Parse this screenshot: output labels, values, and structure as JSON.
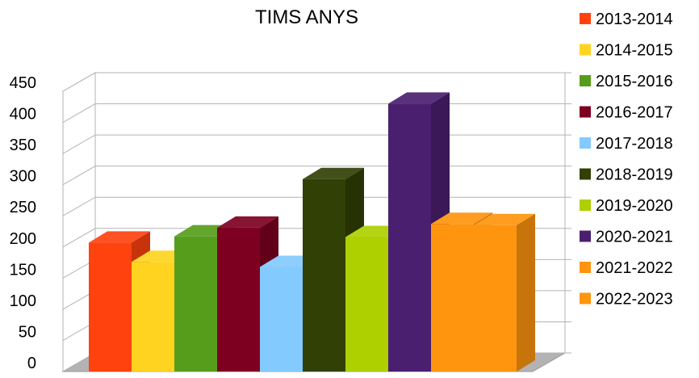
{
  "chart_data": {
    "type": "bar",
    "title": "TIMS ANYS",
    "xlabel": "",
    "ylabel": "",
    "ylim": [
      0,
      450
    ],
    "yticks": [
      0,
      50,
      100,
      150,
      200,
      250,
      300,
      350,
      400,
      450
    ],
    "grid": true,
    "three_d": true,
    "legend_position": "right",
    "series": [
      {
        "name": "2013-2014",
        "value": 207,
        "color": "#ff420e"
      },
      {
        "name": "2014-2015",
        "value": 176,
        "color": "#ffd320"
      },
      {
        "name": "2015-2016",
        "value": 217,
        "color": "#579d1c"
      },
      {
        "name": "2016-2017",
        "value": 231,
        "color": "#7e0021"
      },
      {
        "name": "2017-2018",
        "value": 168,
        "color": "#83caff"
      },
      {
        "name": "2018-2019",
        "value": 309,
        "color": "#314004"
      },
      {
        "name": "2019-2020",
        "value": 216,
        "color": "#aecf00"
      },
      {
        "name": "2020-2021",
        "value": 430,
        "color": "#4b1f6f"
      },
      {
        "name": "2021-2022",
        "value": 237,
        "color": "#ff950e"
      },
      {
        "name": "2022-2023",
        "value": 235,
        "color": "#ff950e"
      }
    ]
  }
}
